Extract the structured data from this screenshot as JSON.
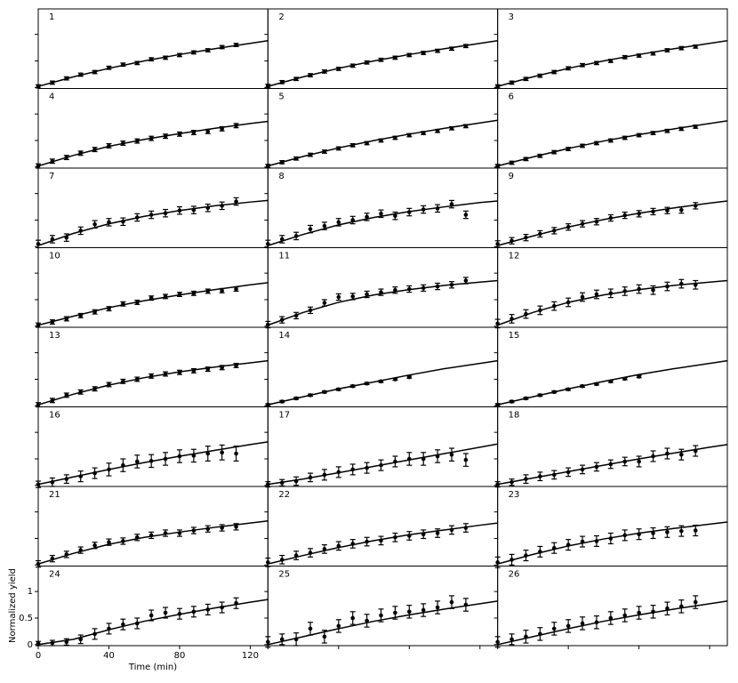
{
  "chart_data": {
    "type": "scatter",
    "x_label": "Time (min)",
    "y_label": "Normalized yield",
    "xlim": [
      0,
      130
    ],
    "ylim": [
      -0.02,
      1.48
    ],
    "xticks": [
      0,
      40,
      80,
      120
    ],
    "yticks": [
      0,
      0.5,
      1
    ],
    "x": [
      0,
      8,
      16,
      24,
      32,
      40,
      48,
      56,
      64,
      72,
      80,
      88,
      96,
      104,
      112
    ],
    "fit_x": [
      0,
      20,
      40,
      60,
      80,
      100,
      120,
      130
    ],
    "color": "#000000",
    "panels": [
      {
        "label": "1",
        "values": [
          0.02,
          0.09,
          0.17,
          0.24,
          0.29,
          0.37,
          0.43,
          0.46,
          0.53,
          0.56,
          0.61,
          0.66,
          0.7,
          0.76,
          0.8
        ],
        "errors": [
          0.03,
          0.03,
          0.03,
          0.03,
          0.03,
          0.03,
          0.03,
          0.03,
          0.03,
          0.03,
          0.03,
          0.03,
          0.03,
          0.03,
          0.03
        ],
        "fit": [
          0.02,
          0.2,
          0.36,
          0.5,
          0.62,
          0.73,
          0.83,
          0.88
        ]
      },
      {
        "label": "2",
        "values": [
          0.03,
          0.1,
          0.16,
          0.23,
          0.3,
          0.35,
          0.41,
          0.47,
          0.52,
          0.56,
          0.61,
          0.65,
          0.69,
          0.73,
          0.78
        ],
        "errors": [
          0.03,
          0.03,
          0.03,
          0.03,
          0.03,
          0.03,
          0.03,
          0.03,
          0.03,
          0.03,
          0.03,
          0.03,
          0.03,
          0.03,
          0.03
        ],
        "fit": [
          0.02,
          0.2,
          0.36,
          0.5,
          0.62,
          0.73,
          0.83,
          0.88
        ]
      },
      {
        "label": "3",
        "values": [
          0.02,
          0.09,
          0.16,
          0.22,
          0.29,
          0.36,
          0.42,
          0.46,
          0.5,
          0.57,
          0.6,
          0.64,
          0.7,
          0.74,
          0.77
        ],
        "errors": [
          0.03,
          0.03,
          0.03,
          0.03,
          0.03,
          0.03,
          0.03,
          0.03,
          0.03,
          0.03,
          0.03,
          0.03,
          0.03,
          0.03,
          0.03
        ],
        "fit": [
          0.02,
          0.2,
          0.36,
          0.5,
          0.62,
          0.73,
          0.83,
          0.88
        ]
      },
      {
        "label": "4",
        "values": [
          0.02,
          0.11,
          0.18,
          0.26,
          0.33,
          0.4,
          0.45,
          0.49,
          0.54,
          0.58,
          0.62,
          0.65,
          0.67,
          0.72,
          0.78
        ],
        "errors": [
          0.04,
          0.04,
          0.04,
          0.04,
          0.04,
          0.04,
          0.04,
          0.04,
          0.04,
          0.04,
          0.04,
          0.04,
          0.04,
          0.04,
          0.04
        ],
        "fit": [
          0.02,
          0.22,
          0.39,
          0.52,
          0.63,
          0.73,
          0.82,
          0.86
        ]
      },
      {
        "label": "5",
        "values": [
          0.02,
          0.09,
          0.16,
          0.23,
          0.29,
          0.35,
          0.41,
          0.45,
          0.5,
          0.55,
          0.6,
          0.64,
          0.68,
          0.73,
          0.77
        ],
        "errors": [
          0.03,
          0.03,
          0.03,
          0.03,
          0.03,
          0.03,
          0.03,
          0.03,
          0.03,
          0.03,
          0.03,
          0.03,
          0.03,
          0.03,
          0.03
        ],
        "fit": [
          0.02,
          0.2,
          0.36,
          0.5,
          0.62,
          0.73,
          0.83,
          0.88
        ]
      },
      {
        "label": "6",
        "values": [
          0.02,
          0.08,
          0.15,
          0.21,
          0.28,
          0.34,
          0.4,
          0.45,
          0.5,
          0.55,
          0.6,
          0.64,
          0.68,
          0.72,
          0.76
        ],
        "errors": [
          0.03,
          0.03,
          0.03,
          0.03,
          0.03,
          0.03,
          0.03,
          0.03,
          0.03,
          0.03,
          0.03,
          0.03,
          0.03,
          0.03,
          0.03
        ],
        "fit": [
          0.02,
          0.19,
          0.35,
          0.49,
          0.61,
          0.72,
          0.82,
          0.87
        ]
      },
      {
        "label": "7",
        "values": [
          0.05,
          0.14,
          0.17,
          0.3,
          0.42,
          0.46,
          0.47,
          0.55,
          0.6,
          0.63,
          0.68,
          0.69,
          0.73,
          0.77,
          0.85
        ],
        "errors": [
          0.07,
          0.07,
          0.07,
          0.07,
          0.07,
          0.07,
          0.07,
          0.07,
          0.07,
          0.07,
          0.07,
          0.07,
          0.07,
          0.07,
          0.07
        ],
        "fit": [
          0.02,
          0.25,
          0.43,
          0.57,
          0.68,
          0.77,
          0.84,
          0.87
        ]
      },
      {
        "label": "8",
        "values": [
          0.05,
          0.14,
          0.2,
          0.33,
          0.39,
          0.46,
          0.5,
          0.56,
          0.62,
          0.58,
          0.65,
          0.7,
          0.72,
          0.8,
          0.6
        ],
        "errors": [
          0.07,
          0.07,
          0.07,
          0.07,
          0.07,
          0.07,
          0.07,
          0.07,
          0.07,
          0.07,
          0.07,
          0.07,
          0.07,
          0.07,
          0.07
        ],
        "fit": [
          0.02,
          0.23,
          0.41,
          0.55,
          0.66,
          0.75,
          0.83,
          0.86
        ]
      },
      {
        "label": "9",
        "values": [
          0.05,
          0.11,
          0.17,
          0.24,
          0.3,
          0.37,
          0.43,
          0.47,
          0.54,
          0.59,
          0.62,
          0.66,
          0.68,
          0.69,
          0.77
        ],
        "errors": [
          0.06,
          0.06,
          0.06,
          0.06,
          0.06,
          0.06,
          0.06,
          0.06,
          0.06,
          0.06,
          0.06,
          0.06,
          0.06,
          0.06,
          0.06
        ],
        "fit": [
          0.02,
          0.2,
          0.37,
          0.51,
          0.63,
          0.73,
          0.82,
          0.86
        ]
      },
      {
        "label": "10",
        "values": [
          0.02,
          0.08,
          0.14,
          0.2,
          0.27,
          0.33,
          0.42,
          0.45,
          0.53,
          0.56,
          0.6,
          0.62,
          0.66,
          0.67,
          0.7
        ],
        "errors": [
          0.04,
          0.04,
          0.04,
          0.04,
          0.04,
          0.04,
          0.04,
          0.04,
          0.04,
          0.04,
          0.04,
          0.04,
          0.04,
          0.04,
          0.04
        ],
        "fit": [
          0.02,
          0.19,
          0.35,
          0.48,
          0.59,
          0.69,
          0.78,
          0.82
        ]
      },
      {
        "label": "11",
        "values": [
          0.03,
          0.12,
          0.2,
          0.3,
          0.44,
          0.55,
          0.56,
          0.6,
          0.64,
          0.68,
          0.7,
          0.72,
          0.75,
          0.78,
          0.86
        ],
        "errors": [
          0.06,
          0.06,
          0.06,
          0.06,
          0.06,
          0.06,
          0.06,
          0.06,
          0.06,
          0.06,
          0.06,
          0.06,
          0.06,
          0.06,
          0.06
        ],
        "fit": [
          0.02,
          0.26,
          0.45,
          0.59,
          0.69,
          0.77,
          0.83,
          0.86
        ]
      },
      {
        "label": "12",
        "values": [
          0.05,
          0.14,
          0.23,
          0.3,
          0.38,
          0.45,
          0.55,
          0.6,
          0.62,
          0.66,
          0.7,
          0.68,
          0.75,
          0.8,
          0.78
        ],
        "errors": [
          0.08,
          0.08,
          0.08,
          0.08,
          0.08,
          0.08,
          0.08,
          0.08,
          0.08,
          0.08,
          0.08,
          0.08,
          0.08,
          0.08,
          0.08
        ],
        "fit": [
          0.02,
          0.26,
          0.45,
          0.59,
          0.69,
          0.77,
          0.83,
          0.86
        ]
      },
      {
        "label": "13",
        "values": [
          0.02,
          0.1,
          0.2,
          0.26,
          0.32,
          0.4,
          0.46,
          0.5,
          0.56,
          0.6,
          0.63,
          0.66,
          0.69,
          0.72,
          0.76
        ],
        "errors": [
          0.04,
          0.04,
          0.04,
          0.04,
          0.04,
          0.04,
          0.04,
          0.04,
          0.04,
          0.04,
          0.04,
          0.04,
          0.04,
          0.04,
          0.04
        ],
        "fit": [
          0.02,
          0.22,
          0.39,
          0.53,
          0.64,
          0.73,
          0.81,
          0.85
        ]
      },
      {
        "label": "14",
        "values": [
          0.02,
          0.08,
          0.14,
          0.2,
          0.26,
          0.31,
          0.37,
          0.42,
          0.46,
          0.5,
          0.54,
          null,
          null,
          null,
          null
        ],
        "errors": [
          0.02,
          0.02,
          0.02,
          0.02,
          0.02,
          0.02,
          0.02,
          0.02,
          0.02,
          0.02,
          0.02,
          null,
          null,
          null,
          null
        ],
        "fit": [
          0.02,
          0.17,
          0.32,
          0.45,
          0.58,
          0.7,
          0.8,
          0.85
        ]
      },
      {
        "label": "15",
        "values": [
          0.02,
          0.08,
          0.14,
          0.2,
          0.26,
          0.31,
          0.37,
          0.41,
          0.46,
          0.51,
          0.55,
          null,
          null,
          null,
          null
        ],
        "errors": [
          0.02,
          0.02,
          0.02,
          0.02,
          0.02,
          0.02,
          0.02,
          0.02,
          0.02,
          0.02,
          0.02,
          null,
          null,
          null,
          null
        ],
        "fit": [
          0.02,
          0.17,
          0.32,
          0.46,
          0.59,
          0.7,
          0.8,
          0.85
        ]
      },
      {
        "label": "16",
        "values": [
          0.02,
          0.06,
          0.12,
          0.17,
          0.23,
          0.3,
          0.38,
          0.45,
          0.46,
          0.5,
          0.55,
          0.56,
          0.6,
          0.62,
          0.6
        ],
        "errors": [
          0.06,
          0.08,
          0.08,
          0.1,
          0.1,
          0.12,
          0.12,
          0.12,
          0.12,
          0.12,
          0.12,
          0.12,
          0.14,
          0.14,
          0.14
        ],
        "fit": [
          0.02,
          0.16,
          0.3,
          0.43,
          0.55,
          0.66,
          0.77,
          0.82
        ]
      },
      {
        "label": "17",
        "values": [
          0.02,
          0.05,
          0.08,
          0.15,
          0.2,
          0.25,
          0.3,
          0.33,
          0.38,
          0.45,
          0.5,
          0.5,
          0.55,
          0.58,
          0.48
        ],
        "errors": [
          0.05,
          0.06,
          0.08,
          0.08,
          0.1,
          0.1,
          0.1,
          0.1,
          0.1,
          0.1,
          0.12,
          0.12,
          0.12,
          0.12,
          0.12
        ],
        "fit": [
          0.02,
          0.12,
          0.24,
          0.36,
          0.48,
          0.6,
          0.72,
          0.78
        ]
      },
      {
        "label": "18",
        "values": [
          0.02,
          0.06,
          0.12,
          0.17,
          0.2,
          0.25,
          0.3,
          0.35,
          0.4,
          0.45,
          0.45,
          0.55,
          0.6,
          0.58,
          0.65
        ],
        "errors": [
          0.05,
          0.06,
          0.08,
          0.08,
          0.08,
          0.08,
          0.08,
          0.08,
          0.08,
          0.08,
          0.1,
          0.1,
          0.1,
          0.1,
          0.1
        ],
        "fit": [
          0.02,
          0.14,
          0.26,
          0.38,
          0.5,
          0.61,
          0.72,
          0.77
        ]
      },
      {
        "label": "21",
        "values": [
          0.02,
          0.12,
          0.2,
          0.28,
          0.37,
          0.43,
          0.45,
          0.52,
          0.56,
          0.6,
          0.6,
          0.65,
          0.68,
          0.7,
          0.72
        ],
        "errors": [
          0.06,
          0.06,
          0.06,
          0.06,
          0.06,
          0.06,
          0.06,
          0.06,
          0.06,
          0.06,
          0.06,
          0.06,
          0.06,
          0.06,
          0.06
        ],
        "fit": [
          0.02,
          0.22,
          0.39,
          0.52,
          0.62,
          0.71,
          0.79,
          0.83
        ]
      },
      {
        "label": "22",
        "values": [
          0.05,
          0.1,
          0.18,
          0.23,
          0.3,
          0.36,
          0.4,
          0.44,
          0.46,
          0.52,
          0.55,
          0.58,
          0.6,
          0.66,
          0.7
        ],
        "errors": [
          0.08,
          0.08,
          0.08,
          0.08,
          0.08,
          0.08,
          0.08,
          0.08,
          0.08,
          0.08,
          0.08,
          0.08,
          0.08,
          0.08,
          0.08
        ],
        "fit": [
          0.02,
          0.18,
          0.33,
          0.46,
          0.57,
          0.66,
          0.75,
          0.79
        ]
      },
      {
        "label": "23",
        "values": [
          0.05,
          0.1,
          0.18,
          0.25,
          0.32,
          0.38,
          0.44,
          0.45,
          0.5,
          0.56,
          0.58,
          0.6,
          0.62,
          0.64,
          0.65
        ],
        "errors": [
          0.1,
          0.1,
          0.1,
          0.1,
          0.1,
          0.1,
          0.1,
          0.1,
          0.1,
          0.1,
          0.1,
          0.1,
          0.1,
          0.1,
          0.1
        ],
        "fit": [
          0.02,
          0.2,
          0.36,
          0.49,
          0.6,
          0.69,
          0.77,
          0.81
        ]
      },
      {
        "label": "24",
        "values": [
          0.02,
          0.03,
          0.05,
          0.1,
          0.2,
          0.3,
          0.38,
          0.4,
          0.55,
          0.6,
          0.58,
          0.62,
          0.66,
          0.7,
          0.78
        ],
        "errors": [
          0.04,
          0.05,
          0.06,
          0.08,
          0.1,
          0.1,
          0.1,
          0.1,
          0.1,
          0.1,
          0.1,
          0.1,
          0.1,
          0.1,
          0.1
        ],
        "fit": [
          0,
          0.1,
          0.28,
          0.44,
          0.57,
          0.69,
          0.8,
          0.85
        ]
      },
      {
        "label": "25",
        "values": [
          0.05,
          0.1,
          0.1,
          0.3,
          0.15,
          0.35,
          0.5,
          0.45,
          0.55,
          0.6,
          0.62,
          0.65,
          0.7,
          0.8,
          0.75
        ],
        "errors": [
          0.1,
          0.1,
          0.12,
          0.12,
          0.12,
          0.12,
          0.12,
          0.12,
          0.12,
          0.12,
          0.12,
          0.12,
          0.12,
          0.12,
          0.12
        ],
        "fit": [
          0,
          0.15,
          0.3,
          0.44,
          0.56,
          0.67,
          0.77,
          0.82
        ]
      },
      {
        "label": "26",
        "values": [
          0.05,
          0.1,
          0.15,
          0.2,
          0.3,
          0.35,
          0.4,
          0.42,
          0.5,
          0.55,
          0.6,
          0.62,
          0.68,
          0.72,
          0.8
        ],
        "errors": [
          0.1,
          0.1,
          0.12,
          0.12,
          0.12,
          0.12,
          0.12,
          0.12,
          0.12,
          0.12,
          0.12,
          0.12,
          0.12,
          0.12,
          0.12
        ],
        "fit": [
          0,
          0.15,
          0.3,
          0.44,
          0.56,
          0.67,
          0.77,
          0.82
        ]
      }
    ]
  }
}
